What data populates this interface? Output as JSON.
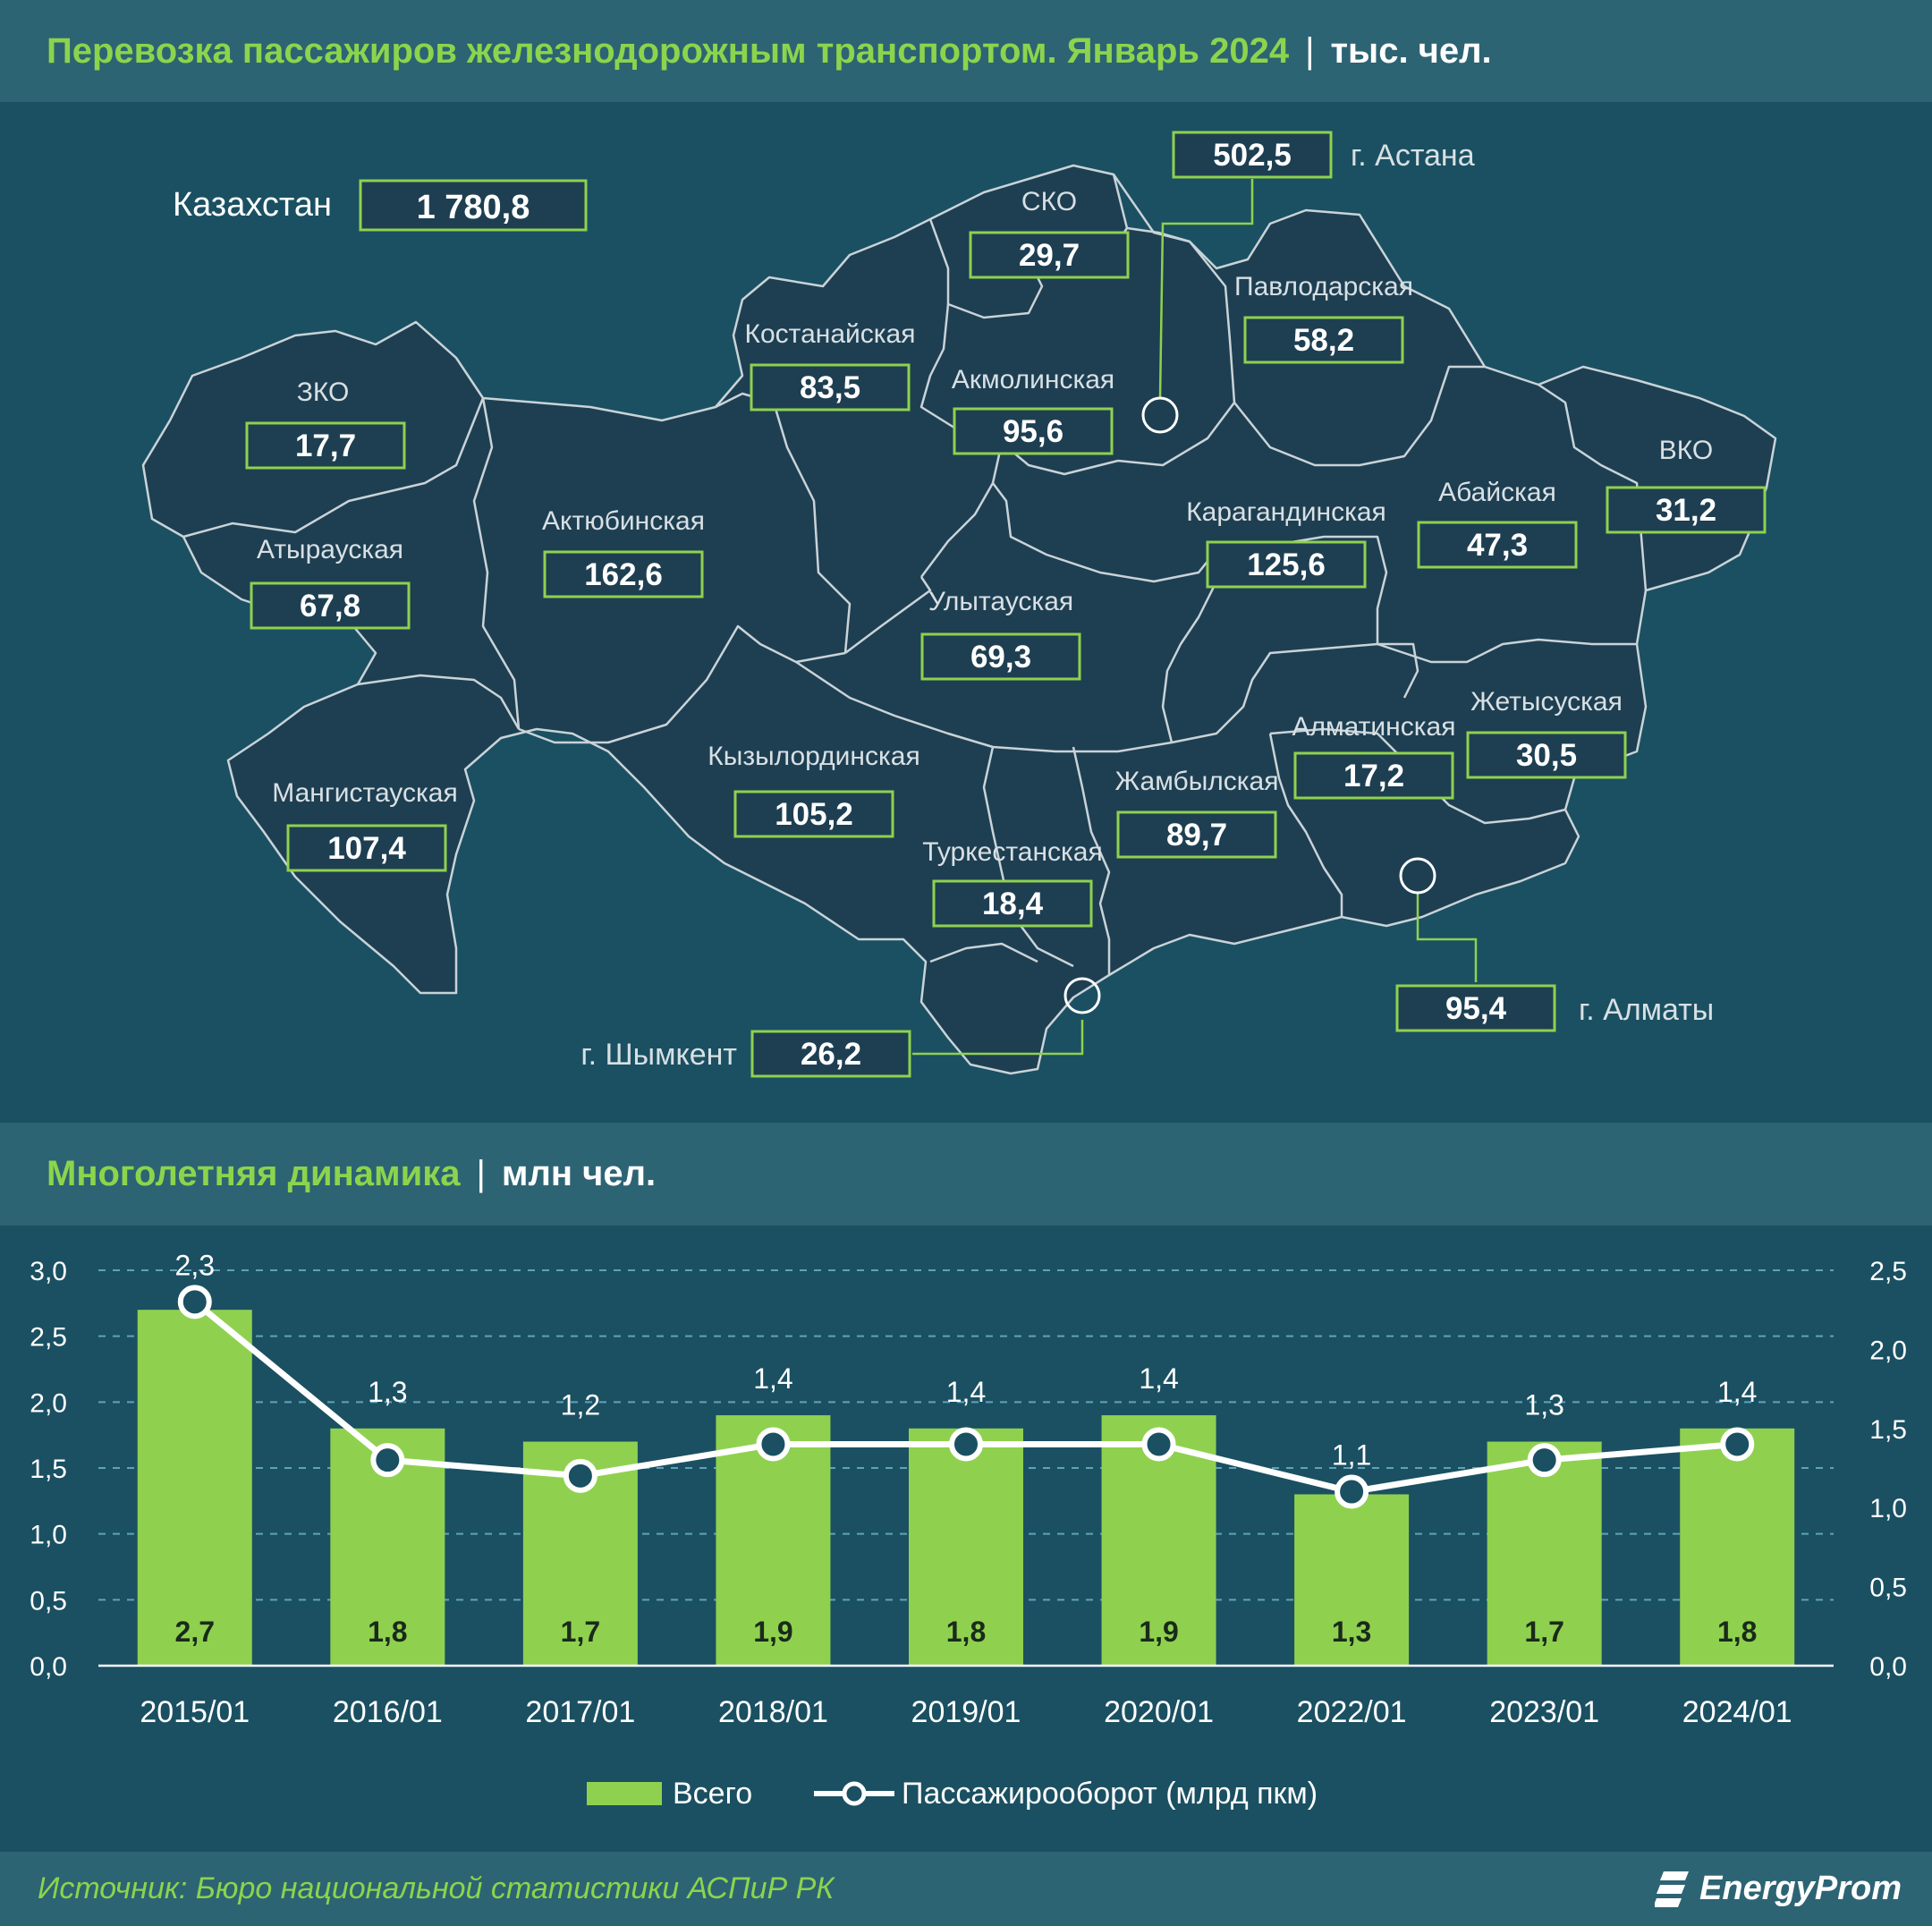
{
  "map_title": "Перевозка пассажиров железнодорожным транспортом. Январь 2024",
  "map_unit": "тыс. чел.",
  "country": {
    "label": "Казахстан",
    "value": "1 780,8"
  },
  "regions": [
    {
      "id": "zko",
      "label": "ЗКО",
      "value": "17,7"
    },
    {
      "id": "atyrau",
      "label": "Атырауская",
      "value": "67,8"
    },
    {
      "id": "mangistau",
      "label": "Мангистауская",
      "value": "107,4"
    },
    {
      "id": "aktobe",
      "label": "Актюбинская",
      "value": "162,6"
    },
    {
      "id": "kostanay",
      "label": "Костанайская",
      "value": "83,5"
    },
    {
      "id": "sko",
      "label": "СКО",
      "value": "29,7"
    },
    {
      "id": "akmola",
      "label": "Акмолинская",
      "value": "95,6"
    },
    {
      "id": "pavlodar",
      "label": "Павлодарская",
      "value": "58,2"
    },
    {
      "id": "karaganda",
      "label": "Карагандинская",
      "value": "125,6"
    },
    {
      "id": "abai",
      "label": "Абайская",
      "value": "47,3"
    },
    {
      "id": "vko",
      "label": "ВКО",
      "value": "31,2"
    },
    {
      "id": "ulytau",
      "label": "Улытауская",
      "value": "69,3"
    },
    {
      "id": "kyzylorda",
      "label": "Кызылординская",
      "value": "105,2"
    },
    {
      "id": "zhambyl",
      "label": "Жамбылская",
      "value": "89,7"
    },
    {
      "id": "turkestan",
      "label": "Туркестанская",
      "value": "18,4"
    },
    {
      "id": "almaty_reg",
      "label": "Алматинская",
      "value": "17,2"
    },
    {
      "id": "zhetysu",
      "label": "Жетысуская",
      "value": "30,5"
    }
  ],
  "cities": [
    {
      "id": "astana",
      "label": "г. Астана",
      "value": "502,5"
    },
    {
      "id": "almaty",
      "label": "г. Алматы",
      "value": "95,4"
    },
    {
      "id": "shymkent",
      "label": "г. Шымкент",
      "value": "26,2"
    }
  ],
  "chart_title": "Многолетняя динамика",
  "chart_unit": "млн чел.",
  "chart_data": {
    "type": "bar",
    "categories": [
      "2015/01",
      "2016/01",
      "2017/01",
      "2018/01",
      "2019/01",
      "2020/01",
      "2022/01",
      "2023/01",
      "2024/01"
    ],
    "series": [
      {
        "name": "Всего",
        "type": "bar",
        "axis": "left",
        "color": "#8fd14f",
        "values": [
          2.7,
          1.8,
          1.7,
          1.9,
          1.8,
          1.9,
          1.3,
          1.7,
          1.8
        ]
      },
      {
        "name": "Пассажирооборот (млрд пкм)",
        "type": "line",
        "axis": "right",
        "color": "#ffffff",
        "values": [
          2.3,
          1.3,
          1.2,
          1.4,
          1.4,
          1.4,
          1.1,
          1.3,
          1.4
        ]
      }
    ],
    "left_axis": {
      "range": [
        0,
        3.0
      ],
      "ticks": [
        "0,0",
        "0,5",
        "1,0",
        "1,5",
        "2,0",
        "2,5",
        "3,0"
      ]
    },
    "right_axis": {
      "range": [
        0,
        2.5
      ],
      "ticks": [
        "0,0",
        "0,5",
        "1,0",
        "1,5",
        "2,0",
        "2,5"
      ]
    },
    "grid": true,
    "legend_position": "bottom"
  },
  "source": "Источник: Бюро национальной статистики АСПиР РК",
  "logo_text": "EnergyProm",
  "colors": {
    "accent_green": "#8cd44c",
    "background": "#1a5062",
    "header": "#2c6474",
    "region_fill": "#1e3f52",
    "border": "#c9d3d8"
  }
}
